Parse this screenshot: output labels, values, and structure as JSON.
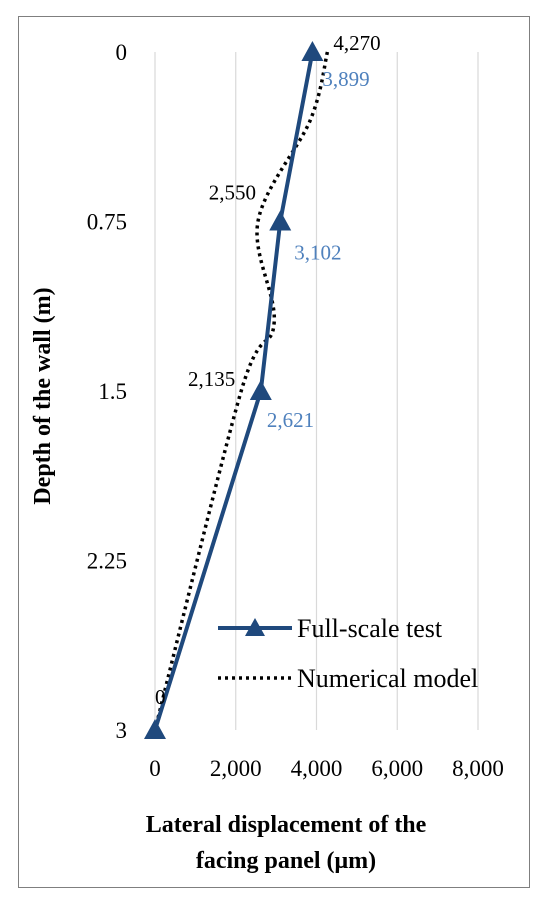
{
  "chart_data": {
    "type": "line",
    "xlabel_line1": "Lateral displacement of the",
    "xlabel_line2": "facing panel (μm)",
    "ylabel": "Depth of the wall (m)",
    "xlim": [
      0,
      8000
    ],
    "ylim": [
      0,
      3
    ],
    "y_inverted": true,
    "x_ticks": [
      "0",
      "2,000",
      "4,000",
      "6,000",
      "8,000"
    ],
    "y_ticks": [
      "0",
      "0.75",
      "1.5",
      "2.25",
      "3"
    ],
    "grid": "vertical",
    "legend_position": "bottom-right",
    "series": [
      {
        "name": "Full-scale test",
        "color": "#1f497d",
        "style": "solid-triangle-markers",
        "points": [
          {
            "x": 3899,
            "y": 0
          },
          {
            "x": 3102,
            "y": 0.75
          },
          {
            "x": 2621,
            "y": 1.5
          },
          {
            "x": 0,
            "y": 3
          }
        ],
        "labels": [
          "3,899",
          "3,102",
          "2,621"
        ]
      },
      {
        "name": "Numerical model",
        "color": "#000000",
        "style": "dotted",
        "points": [
          {
            "x": 4270,
            "y": 0
          },
          {
            "x": 3850,
            "y": 0.3
          },
          {
            "x": 2550,
            "y": 0.75
          },
          {
            "x": 2950,
            "y": 1.2
          },
          {
            "x": 2135,
            "y": 1.5
          },
          {
            "x": 0,
            "y": 3
          }
        ],
        "labels": [
          "4,270",
          "2,550",
          "2,135",
          "0"
        ]
      }
    ]
  }
}
